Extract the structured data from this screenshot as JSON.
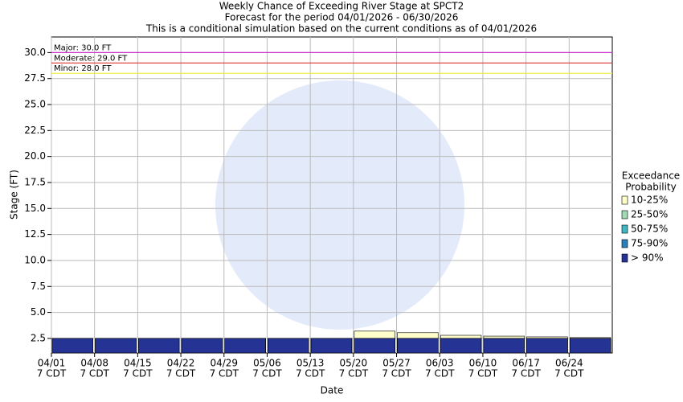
{
  "chart_data": {
    "type": "bar",
    "title": "Weekly Chance of Exceeding River Stage at SPCT2",
    "subtitle": "Forecast for the period 04/01/2026 - 06/30/2026",
    "note": "This is a conditional simulation based on the current conditions as of 04/01/2026",
    "y_label": "Stage (FT)",
    "x_label": "Date",
    "categories": [
      "04/01",
      "04/08",
      "04/15",
      "04/22",
      "04/29",
      "05/06",
      "05/13",
      "05/20",
      "05/27",
      "06/03",
      "06/10",
      "06/17",
      "06/24"
    ],
    "x_tick_sublabel": "7 CDT",
    "series": [
      {
        "name": "10-25%",
        "color": "#ffffcc",
        "values": [
          2.5,
          2.5,
          2.5,
          2.5,
          2.5,
          2.5,
          2.5,
          3.2,
          3.05,
          2.8,
          2.72,
          2.65,
          2.58
        ]
      },
      {
        "name": "25-50%",
        "color": "#a1dab4",
        "values": [
          2.5,
          2.5,
          2.5,
          2.5,
          2.5,
          2.5,
          2.5,
          2.5,
          2.5,
          2.5,
          2.5,
          2.5,
          2.5
        ]
      },
      {
        "name": "50-75%",
        "color": "#41b6c4",
        "values": [
          2.5,
          2.5,
          2.5,
          2.5,
          2.5,
          2.5,
          2.5,
          2.5,
          2.5,
          2.5,
          2.5,
          2.5,
          2.5
        ]
      },
      {
        "name": "75-90%",
        "color": "#2c7fb8",
        "values": [
          2.5,
          2.5,
          2.5,
          2.5,
          2.5,
          2.5,
          2.5,
          2.5,
          2.5,
          2.5,
          2.5,
          2.5,
          2.5
        ]
      },
      {
        "name": "> 90%",
        "color": "#253494",
        "values": [
          2.5,
          2.5,
          2.5,
          2.5,
          2.5,
          2.5,
          2.5,
          2.5,
          2.5,
          2.5,
          2.5,
          2.5,
          2.5
        ]
      }
    ],
    "legend_title": [
      "Exceedance",
      "Probability"
    ],
    "thresholds": [
      {
        "label": "Major: 30.0 FT",
        "value": 30,
        "color": "#cc33cc"
      },
      {
        "label": "Moderate: 29.0 FT",
        "value": 29,
        "color": "#dd3333"
      },
      {
        "label": "Minor: 28.0 FT",
        "value": 28,
        "color": "#eeee44"
      }
    ],
    "ylim": [
      1.1,
      31.5
    ],
    "yticks": [
      2.5,
      {
        "value": 5,
        "label": "5.0"
      },
      7.5,
      {
        "value": 10,
        "label": "10.0"
      },
      12.5,
      {
        "value": 15,
        "label": "15.0"
      },
      17.5,
      {
        "value": 20,
        "label": "20.0"
      },
      22.5,
      {
        "value": 25,
        "label": "25.0"
      },
      27.5,
      {
        "value": 30,
        "label": "30.0"
      }
    ],
    "grid": true
  }
}
